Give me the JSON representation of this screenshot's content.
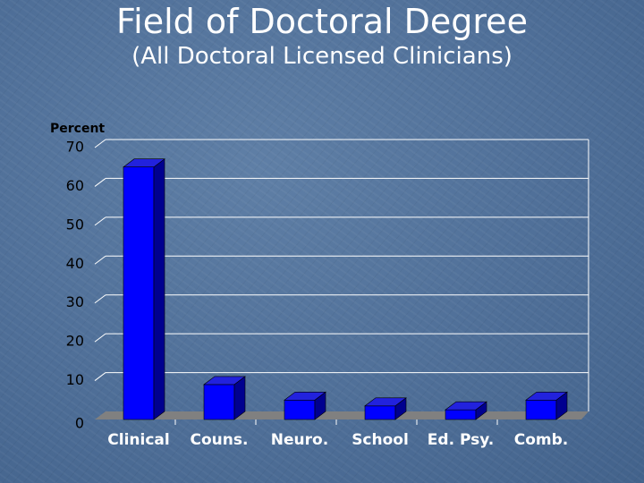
{
  "slide": {
    "title": "Field of Doctoral Degree",
    "subtitle": "(All Doctoral Licensed Clinicians)"
  },
  "chart_data": {
    "type": "bar",
    "title": "Field of Doctoral Degree",
    "subtitle": "(All Doctoral Licensed Clinicians)",
    "xlabel": "",
    "ylabel": "Percent",
    "categories": [
      "Clinical",
      "Couns.",
      "Neuro.",
      "School",
      "Ed. Psy.",
      "Comb."
    ],
    "values": [
      65,
      9,
      5,
      3.5,
      2.5,
      5
    ],
    "ylim": [
      0,
      70
    ],
    "yticks": [
      0,
      10,
      20,
      30,
      40,
      50,
      60,
      70
    ],
    "grid": true,
    "bar_style": "3d",
    "colors": {
      "bar_front": "#0000ff",
      "bar_side": "#00008f",
      "bar_top": "#2222dd",
      "floor": "#808080",
      "gridline": "#ffffff"
    }
  }
}
